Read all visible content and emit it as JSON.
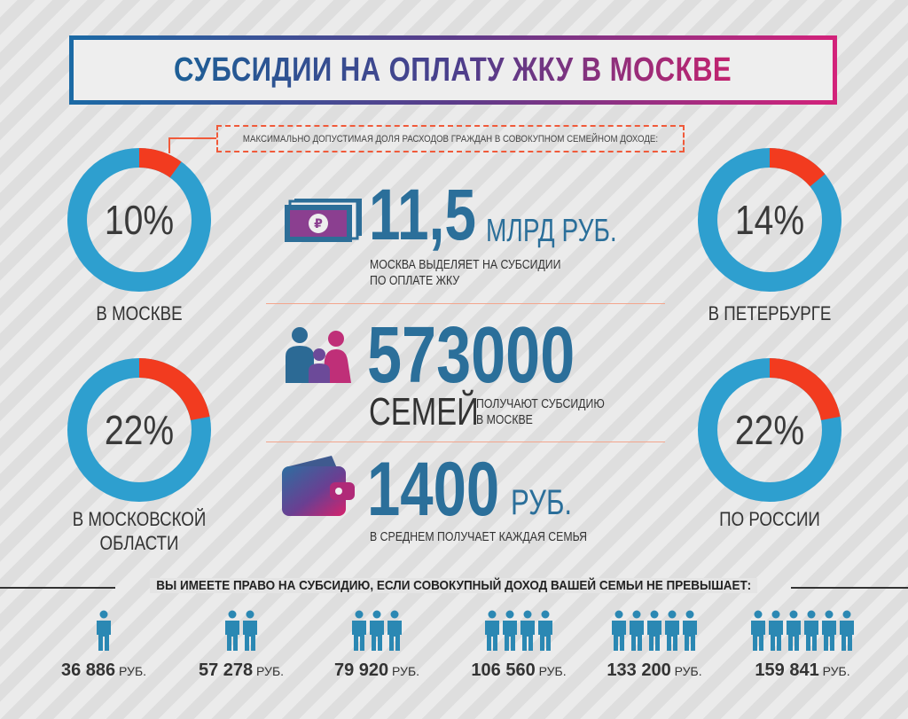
{
  "title": "СУБСИДИИ НА ОПЛАТУ ЖКУ В МОСКВЕ",
  "note": "МАКСИМАЛЬНО ДОПУСТИМАЯ ДОЛЯ РАСХОДОВ ГРАЖДАН В СОВОКУПНОМ СЕМЕЙНОМ ДОХОДЕ:",
  "colors": {
    "ring_blue": "#2e9fcf",
    "ring_red": "#f23b1f",
    "accent_blue": "#2b6f9a",
    "person": "#2b88b3"
  },
  "donuts": [
    {
      "id": "moscow",
      "percent_text": "10%",
      "share": 10,
      "label": "В МОСКВЕ"
    },
    {
      "id": "peterburg",
      "percent_text": "14%",
      "share": 14,
      "label": "В ПЕТЕРБУРГЕ"
    },
    {
      "id": "oblast",
      "percent_text": "22%",
      "share": 22,
      "label": "В МОСКОВСКОЙ\nОБЛАСТИ"
    },
    {
      "id": "russia",
      "percent_text": "22%",
      "share": 22,
      "label": "ПО РОССИИ"
    }
  ],
  "stats": {
    "budget": {
      "icon": "banknotes-icon",
      "number": "11,5",
      "unit": "МЛРД РУБ.",
      "desc": "МОСКВА ВЫДЕЛЯЕТ НА СУБСИДИИ\nПО ОПЛАТЕ ЖКУ"
    },
    "families": {
      "icon": "family-icon",
      "number": "573000",
      "unit": "СЕМЕЙ",
      "desc": "ПОЛУЧАЮТ СУБСИДИЮ\nВ МОСКВЕ"
    },
    "average": {
      "icon": "wallet-icon",
      "number": "1400",
      "unit": "РУБ.",
      "desc": "В СРЕДНЕМ ПОЛУЧАЕТ КАЖДАЯ СЕМЬЯ"
    }
  },
  "bottom": {
    "heading": "ВЫ ИМЕЕТЕ ПРАВО НА СУБСИДИЮ, ЕСЛИ СОВОКУПНЫЙ ДОХОД ВАШЕЙ СЕМЬИ НЕ ПРЕВЫШАЕТ:",
    "currency": "РУБ.",
    "incomes": [
      {
        "persons": 1,
        "amount": "36 886"
      },
      {
        "persons": 2,
        "amount": "57 278"
      },
      {
        "persons": 3,
        "amount": "79 920"
      },
      {
        "persons": 4,
        "amount": "106 560"
      },
      {
        "persons": 5,
        "amount": "133 200"
      },
      {
        "persons": 6,
        "amount": "159 841"
      }
    ]
  }
}
